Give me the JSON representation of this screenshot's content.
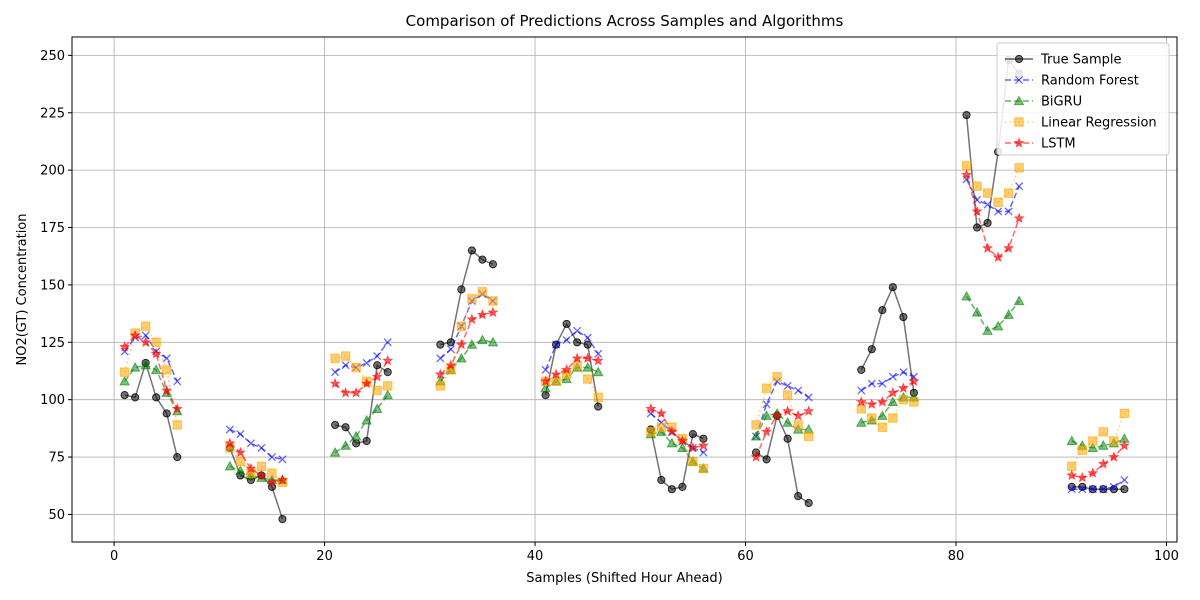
{
  "chart_data": {
    "type": "line",
    "title": "Comparison of Predictions Across Samples and Algorithms",
    "xlabel": "Samples (Shifted Hour Ahead)",
    "ylabel": "NO2(GT) Concentration",
    "xlim": [
      -4,
      101
    ],
    "ylim": [
      38,
      258
    ],
    "xticks": [
      0,
      20,
      40,
      60,
      80,
      100
    ],
    "yticks": [
      50,
      75,
      100,
      125,
      150,
      175,
      200,
      225,
      250
    ],
    "grid": true,
    "legend_position": "top-right",
    "segments": [
      [
        1,
        6
      ],
      [
        11,
        16
      ],
      [
        21,
        26
      ],
      [
        31,
        36
      ],
      [
        41,
        46
      ],
      [
        51,
        56
      ],
      [
        61,
        66
      ],
      [
        71,
        76
      ],
      [
        81,
        86
      ],
      [
        91,
        96
      ]
    ],
    "series": [
      {
        "name": "True Sample",
        "color": "#000000",
        "marker": "circle",
        "linestyle": "solid",
        "x": [
          1,
          2,
          3,
          4,
          5,
          6,
          11,
          12,
          13,
          14,
          15,
          16,
          21,
          22,
          23,
          24,
          25,
          26,
          31,
          32,
          33,
          34,
          35,
          36,
          41,
          42,
          43,
          44,
          45,
          46,
          51,
          52,
          53,
          54,
          55,
          56,
          61,
          62,
          63,
          64,
          65,
          66,
          71,
          72,
          73,
          74,
          75,
          76,
          81,
          82,
          83,
          84,
          85,
          86,
          91,
          92,
          93,
          94,
          95,
          96
        ],
        "y": [
          102,
          101,
          116,
          101,
          94,
          75,
          79,
          67,
          65,
          67,
          62,
          48,
          89,
          88,
          81,
          82,
          115,
          112,
          124,
          125,
          148,
          165,
          161,
          159,
          102,
          124,
          133,
          125,
          124,
          97,
          87,
          65,
          61,
          62,
          85,
          83,
          77,
          74,
          93,
          83,
          58,
          55,
          113,
          122,
          139,
          149,
          136,
          103,
          224,
          175,
          177,
          208,
          248,
          242,
          62,
          62,
          61,
          61,
          61,
          61
        ]
      },
      {
        "name": "Random Forest",
        "color": "#0000ff",
        "marker": "x",
        "linestyle": "dashed",
        "x": [
          1,
          2,
          3,
          4,
          5,
          6,
          11,
          12,
          13,
          14,
          15,
          16,
          21,
          22,
          23,
          24,
          25,
          26,
          31,
          32,
          33,
          34,
          35,
          36,
          41,
          42,
          43,
          44,
          45,
          46,
          51,
          52,
          53,
          54,
          55,
          56,
          61,
          62,
          63,
          64,
          65,
          66,
          71,
          72,
          73,
          74,
          75,
          76,
          81,
          82,
          83,
          84,
          85,
          86,
          91,
          92,
          93,
          94,
          95,
          96
        ],
        "y": [
          121,
          127,
          128,
          121,
          118,
          108,
          87,
          85,
          81,
          79,
          75,
          74,
          112,
          115,
          114,
          116,
          119,
          125,
          118,
          122,
          132,
          143,
          146,
          143,
          113,
          124,
          126,
          130,
          127,
          120,
          94,
          90,
          86,
          82,
          79,
          77,
          84,
          98,
          108,
          106,
          104,
          101,
          104,
          107,
          107,
          110,
          112,
          110,
          196,
          187,
          185,
          182,
          182,
          193,
          61,
          61,
          61,
          61,
          62,
          65
        ]
      },
      {
        "name": "BiGRU",
        "color": "#008000",
        "marker": "triangle",
        "linestyle": "dashed",
        "x": [
          1,
          2,
          3,
          4,
          5,
          6,
          11,
          12,
          13,
          14,
          15,
          16,
          21,
          22,
          23,
          24,
          25,
          26,
          31,
          32,
          33,
          34,
          35,
          36,
          41,
          42,
          43,
          44,
          45,
          46,
          51,
          52,
          53,
          54,
          55,
          56,
          61,
          62,
          63,
          64,
          65,
          66,
          71,
          72,
          73,
          74,
          75,
          76,
          81,
          82,
          83,
          84,
          85,
          86,
          91,
          92,
          93,
          94,
          95,
          96
        ],
        "y": [
          108,
          114,
          115,
          113,
          103,
          95,
          71,
          69,
          67,
          66,
          65,
          65,
          77,
          80,
          84,
          91,
          96,
          102,
          108,
          113,
          118,
          124,
          126,
          125,
          105,
          108,
          109,
          114,
          114,
          112,
          85,
          86,
          81,
          79,
          73,
          70,
          84,
          93,
          94,
          90,
          87,
          87,
          90,
          91,
          93,
          99,
          101,
          101,
          145,
          138,
          130,
          132,
          137,
          143,
          82,
          80,
          79,
          80,
          81,
          83
        ]
      },
      {
        "name": "Linear Regression",
        "color": "#ffa500",
        "marker": "square",
        "linestyle": "dotted",
        "x": [
          1,
          2,
          3,
          4,
          5,
          6,
          11,
          12,
          13,
          14,
          15,
          16,
          21,
          22,
          23,
          24,
          25,
          26,
          31,
          32,
          33,
          34,
          35,
          36,
          41,
          42,
          43,
          44,
          45,
          46,
          51,
          52,
          53,
          54,
          55,
          56,
          61,
          62,
          63,
          64,
          65,
          66,
          71,
          72,
          73,
          74,
          75,
          76,
          81,
          82,
          83,
          84,
          85,
          86,
          91,
          92,
          93,
          94,
          95,
          96
        ],
        "y": [
          112,
          129,
          132,
          125,
          113,
          89,
          79,
          73,
          68,
          71,
          68,
          64,
          118,
          119,
          114,
          108,
          104,
          106,
          106,
          113,
          132,
          144,
          147,
          143,
          108,
          108,
          111,
          115,
          109,
          101,
          86,
          88,
          88,
          83,
          73,
          70,
          89,
          105,
          110,
          102,
          89,
          84,
          96,
          92,
          88,
          92,
          100,
          99,
          202,
          193,
          190,
          186,
          190,
          201,
          71,
          78,
          82,
          86,
          82,
          94
        ]
      },
      {
        "name": "LSTM",
        "color": "#ff0000",
        "marker": "star",
        "linestyle": "dashed",
        "x": [
          1,
          2,
          3,
          4,
          5,
          6,
          11,
          12,
          13,
          14,
          15,
          16,
          21,
          22,
          23,
          24,
          25,
          26,
          31,
          32,
          33,
          34,
          35,
          36,
          41,
          42,
          43,
          44,
          45,
          46,
          51,
          52,
          53,
          54,
          55,
          56,
          61,
          62,
          63,
          64,
          65,
          66,
          71,
          72,
          73,
          74,
          75,
          76,
          81,
          82,
          83,
          84,
          85,
          86,
          91,
          92,
          93,
          94,
          95,
          96
        ],
        "y": [
          123,
          128,
          125,
          120,
          104,
          96,
          81,
          77,
          70,
          67,
          64,
          65,
          107,
          103,
          103,
          107,
          110,
          117,
          111,
          115,
          124,
          135,
          137,
          138,
          108,
          111,
          113,
          118,
          118,
          117,
          96,
          94,
          86,
          82,
          79,
          80,
          75,
          86,
          93,
          95,
          93,
          95,
          99,
          98,
          99,
          103,
          105,
          108,
          198,
          182,
          166,
          162,
          166,
          179,
          67,
          66,
          68,
          72,
          75,
          80
        ]
      }
    ]
  }
}
